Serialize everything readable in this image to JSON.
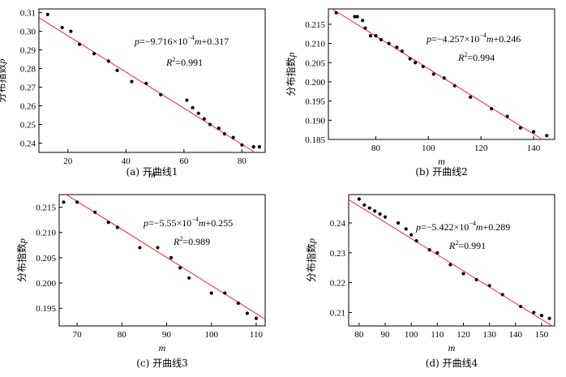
{
  "chart_data": [
    {
      "type": "scatter",
      "caption": "(a) 开曲线1",
      "xlabel": "m",
      "ylabel": "分布指数p",
      "xlim": [
        10,
        88
      ],
      "ylim": [
        0.235,
        0.312
      ],
      "xticks": [
        20,
        40,
        60,
        80
      ],
      "yticks": [
        0.24,
        0.25,
        0.26,
        0.27,
        0.28,
        0.29,
        0.3,
        0.31
      ],
      "equation": {
        "lhs": "p",
        "pre": "=−9.716×10",
        "exp": "−4",
        "post": "m+0.317"
      },
      "r2": "=0.991",
      "fit": {
        "slope": -0.0009716,
        "intercept": 0.317,
        "color": "#e8262c"
      },
      "x": [
        13,
        18,
        21,
        24,
        29,
        34,
        37,
        42,
        47,
        52,
        61,
        63,
        65,
        67,
        69,
        72,
        74,
        77,
        80,
        84,
        86
      ],
      "y": [
        0.309,
        0.302,
        0.3,
        0.293,
        0.288,
        0.284,
        0.279,
        0.273,
        0.272,
        0.266,
        0.263,
        0.259,
        0.256,
        0.253,
        0.25,
        0.248,
        0.245,
        0.243,
        0.239,
        0.238,
        0.238
      ]
    },
    {
      "type": "scatter",
      "caption": "(b) 开曲线2",
      "xlabel": "m",
      "ylabel": "分布指数p",
      "xlim": [
        62,
        148
      ],
      "ylim": [
        0.185,
        0.219
      ],
      "xticks": [
        80,
        100,
        120,
        140
      ],
      "yticks": [
        0.185,
        0.19,
        0.195,
        0.2,
        0.205,
        0.21,
        0.215
      ],
      "equation": {
        "lhs": "p",
        "pre": "=−4.257×10",
        "exp": "−4",
        "post": "m+0.246"
      },
      "r2": "=0.994",
      "fit": {
        "slope": -0.0004257,
        "intercept": 0.246,
        "color": "#e8262c"
      },
      "x": [
        65,
        72,
        73,
        75,
        76,
        78,
        80,
        82,
        85,
        88,
        90,
        93,
        95,
        98,
        102,
        106,
        110,
        116,
        124,
        130,
        135,
        140,
        145
      ],
      "y": [
        0.218,
        0.217,
        0.217,
        0.216,
        0.214,
        0.212,
        0.212,
        0.211,
        0.21,
        0.209,
        0.208,
        0.206,
        0.205,
        0.204,
        0.202,
        0.201,
        0.199,
        0.196,
        0.193,
        0.191,
        0.188,
        0.187,
        0.186
      ]
    },
    {
      "type": "scatter",
      "caption": "(c) 开曲线3",
      "xlabel": "m",
      "ylabel": "分布指数p",
      "xlim": [
        66,
        112
      ],
      "ylim": [
        0.1915,
        0.2175
      ],
      "xticks": [
        70,
        80,
        90,
        100,
        110
      ],
      "yticks": [
        0.195,
        0.2,
        0.205,
        0.21,
        0.215
      ],
      "equation": {
        "lhs": "p",
        "pre": "=−5.55×10",
        "exp": "−4",
        "post": "m+0.255"
      },
      "r2": "=0.989",
      "fit": {
        "slope": -0.000555,
        "intercept": 0.255,
        "color": "#e8262c"
      },
      "x": [
        67,
        70,
        74,
        77,
        79,
        84,
        88,
        91,
        93,
        95,
        100,
        103,
        106,
        108,
        110
      ],
      "y": [
        0.216,
        0.216,
        0.214,
        0.212,
        0.211,
        0.207,
        0.207,
        0.205,
        0.203,
        0.201,
        0.198,
        0.198,
        0.196,
        0.194,
        0.193
      ]
    },
    {
      "type": "scatter",
      "caption": "(d) 开曲线4",
      "xlabel": "m",
      "ylabel": "分布指数p",
      "xlim": [
        76,
        155
      ],
      "ylim": [
        0.2055,
        0.2495
      ],
      "xticks": [
        80,
        90,
        100,
        110,
        120,
        130,
        140,
        150
      ],
      "yticks": [
        0.21,
        0.22,
        0.23,
        0.24
      ],
      "equation": {
        "lhs": "p",
        "pre": "=−5.422×10",
        "exp": "−4",
        "post": "m+0.289"
      },
      "r2": "=0.991",
      "fit": {
        "slope": -0.0005422,
        "intercept": 0.289,
        "color": "#e8262c"
      },
      "x": [
        80,
        82,
        84,
        86,
        88,
        90,
        95,
        98,
        100,
        102,
        107,
        110,
        115,
        120,
        125,
        130,
        135,
        142,
        147,
        150,
        153
      ],
      "y": [
        0.248,
        0.246,
        0.245,
        0.244,
        0.243,
        0.242,
        0.24,
        0.238,
        0.236,
        0.234,
        0.231,
        0.23,
        0.226,
        0.223,
        0.221,
        0.219,
        0.216,
        0.212,
        0.21,
        0.209,
        0.208
      ]
    }
  ]
}
